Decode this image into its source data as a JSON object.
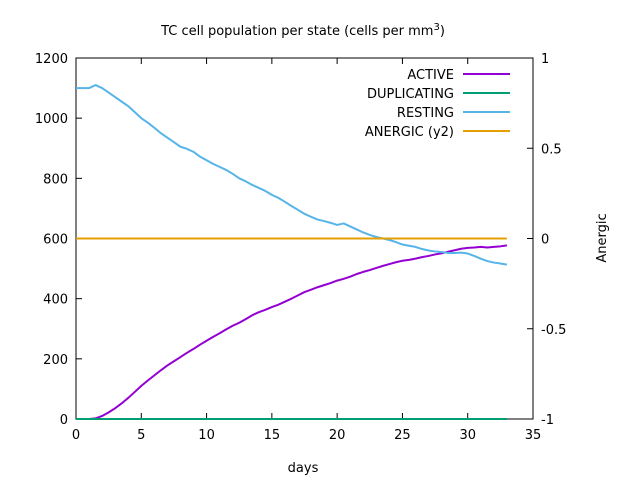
{
  "chart_data": {
    "type": "line",
    "title": "TC cell population per state (cells per mm",
    "title_superscript": "3",
    "title_suffix": ")",
    "xlabel": "days",
    "ylabel": "",
    "y2label": "Anergic",
    "xlim": [
      0,
      35
    ],
    "ylim": [
      0,
      1200
    ],
    "y2lim": [
      -1,
      1
    ],
    "x_ticks": [
      0,
      5,
      10,
      15,
      20,
      25,
      30,
      35
    ],
    "y_ticks": [
      0,
      200,
      400,
      600,
      800,
      1000,
      1200
    ],
    "y2_ticks": [
      -1,
      -0.5,
      0,
      0.5,
      1
    ],
    "grid": false,
    "legend_position": "top-right",
    "series": [
      {
        "name": "ACTIVE",
        "color": "#9400d3",
        "axis": "y",
        "x": [
          0,
          0.5,
          1,
          1.5,
          2,
          2.5,
          3,
          3.5,
          4,
          4.5,
          5,
          5.5,
          6,
          6.5,
          7,
          7.5,
          8,
          8.5,
          9,
          9.5,
          10,
          10.5,
          11,
          11.5,
          12,
          12.5,
          13,
          13.5,
          14,
          14.5,
          15,
          15.5,
          16,
          16.5,
          17,
          17.5,
          18,
          18.5,
          19,
          19.5,
          20,
          20.5,
          21,
          21.5,
          22,
          22.5,
          23,
          23.5,
          24,
          24.5,
          25,
          25.5,
          26,
          26.5,
          27,
          27.5,
          28,
          28.5,
          29,
          29.5,
          30,
          30.5,
          31,
          31.5,
          32,
          32.5,
          33
        ],
        "values": [
          0,
          0,
          0,
          2,
          10,
          22,
          36,
          52,
          70,
          90,
          110,
          128,
          145,
          162,
          178,
          192,
          206,
          220,
          233,
          247,
          260,
          273,
          285,
          298,
          310,
          320,
          332,
          345,
          355,
          363,
          372,
          380,
          390,
          400,
          411,
          422,
          430,
          438,
          445,
          452,
          460,
          466,
          473,
          482,
          489,
          495,
          502,
          509,
          515,
          521,
          526,
          529,
          533,
          538,
          542,
          547,
          551,
          556,
          561,
          566,
          569,
          570,
          572,
          570,
          572,
          574,
          577
        ]
      },
      {
        "name": "DUPLICATING",
        "color": "#009e73",
        "axis": "y",
        "x": [
          0,
          33
        ],
        "values": [
          0,
          0
        ]
      },
      {
        "name": "RESTING",
        "color": "#56b4e9",
        "axis": "y",
        "x": [
          0,
          0.5,
          1,
          1.5,
          2,
          2.5,
          3,
          3.5,
          4,
          4.5,
          5,
          5.5,
          6,
          6.5,
          7,
          7.5,
          8,
          8.5,
          9,
          9.5,
          10,
          10.5,
          11,
          11.5,
          12,
          12.5,
          13,
          13.5,
          14,
          14.5,
          15,
          15.5,
          16,
          16.5,
          17,
          17.5,
          18,
          18.5,
          19,
          19.5,
          20,
          20.5,
          21,
          21.5,
          22,
          22.5,
          23,
          23.5,
          24,
          24.5,
          25,
          25.5,
          26,
          26.5,
          27,
          27.5,
          28,
          28.5,
          29,
          29.5,
          30,
          30.5,
          31,
          31.5,
          32,
          32.5,
          33
        ],
        "values": [
          1100,
          1100,
          1100,
          1110,
          1100,
          1085,
          1070,
          1055,
          1040,
          1020,
          1000,
          985,
          968,
          950,
          935,
          920,
          905,
          898,
          888,
          872,
          860,
          848,
          838,
          828,
          815,
          800,
          790,
          778,
          768,
          758,
          745,
          735,
          722,
          708,
          695,
          682,
          672,
          663,
          658,
          652,
          645,
          650,
          640,
          630,
          620,
          612,
          605,
          600,
          595,
          588,
          580,
          576,
          572,
          565,
          560,
          557,
          555,
          552,
          552,
          553,
          550,
          542,
          533,
          525,
          520,
          517,
          513
        ]
      },
      {
        "name": "ANERGIC (y2)",
        "color": "#e69f00",
        "axis": "y2",
        "x": [
          0,
          33
        ],
        "values": [
          0,
          0
        ]
      }
    ]
  }
}
